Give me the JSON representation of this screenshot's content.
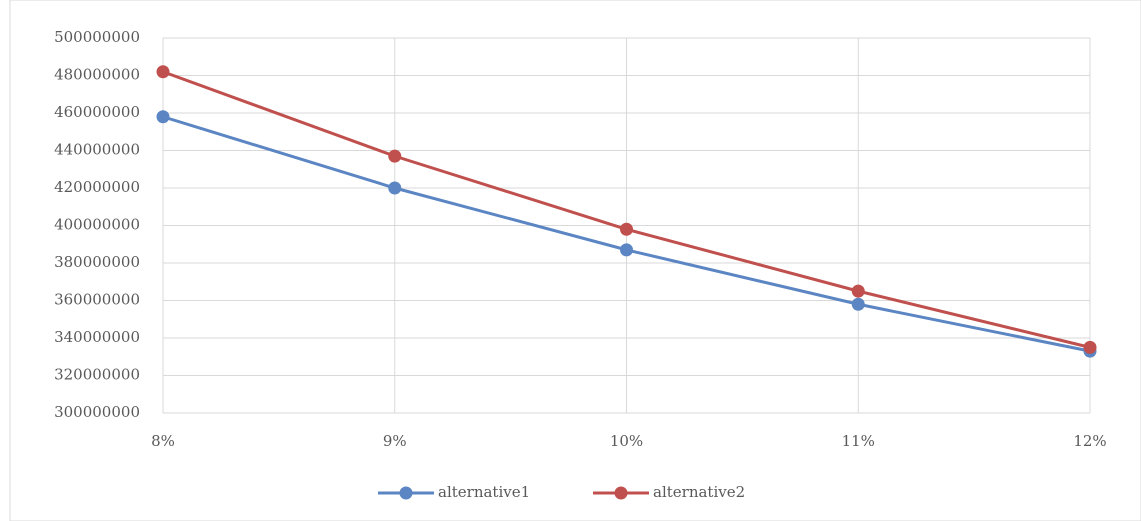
{
  "chart_data": {
    "type": "line",
    "categories": [
      "8%",
      "9%",
      "10%",
      "11%",
      "12%"
    ],
    "series": [
      {
        "name": "alternative1",
        "color": "#5b86c3",
        "values": [
          458000000,
          420000000,
          387000000,
          358000000,
          333000000
        ]
      },
      {
        "name": "alternative2",
        "color": "#c0504d",
        "values": [
          482000000,
          437000000,
          398000000,
          365000000,
          335000000
        ]
      }
    ],
    "ylim": [
      300000000,
      500000000
    ],
    "yticks": [
      300000000,
      320000000,
      340000000,
      360000000,
      380000000,
      400000000,
      420000000,
      440000000,
      460000000,
      480000000,
      500000000
    ],
    "grid": true,
    "legend": "bottom"
  }
}
